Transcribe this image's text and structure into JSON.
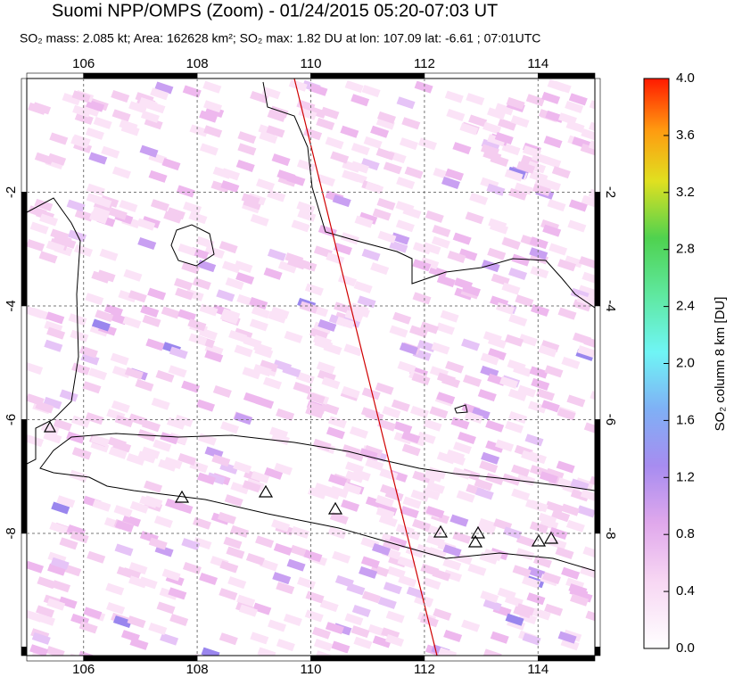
{
  "map": {
    "title": "Suomi NPP/OMPS (Zoom) - 01/24/2015 05:20-07:03 UT",
    "subtitle": "SO₂ mass: 2.085 kt; Area: 162628 km²; SO₂ max: 1.82 DU at lon: 107.09 lat: -6.61 ; 07:01UTC",
    "xlim": [
      105,
      115
    ],
    "ylim": [
      -10.15,
      0
    ],
    "lon_ticks": [
      106,
      108,
      110,
      112,
      114
    ],
    "lat_ticks": [
      -2,
      -4,
      -6,
      -8
    ],
    "colorbar": {
      "label": "SO₂ column 8 km [DU]",
      "lim": [
        0,
        4
      ],
      "ticks": [
        {
          "value": 0,
          "label": "0.0"
        },
        {
          "value": 0.4,
          "label": "0.4"
        },
        {
          "value": 0.8,
          "label": "0.8"
        },
        {
          "value": 1.2,
          "label": "1.2"
        },
        {
          "value": 1.6,
          "label": "1.6"
        },
        {
          "value": 2,
          "label": "2.0"
        },
        {
          "value": 2.4,
          "label": "2.4"
        },
        {
          "value": 2.8,
          "label": "2.8"
        },
        {
          "value": 3.2,
          "label": "3.2"
        },
        {
          "value": 3.6,
          "label": "3.6"
        },
        {
          "value": 4,
          "label": "4.0"
        }
      ]
    }
  }
}
